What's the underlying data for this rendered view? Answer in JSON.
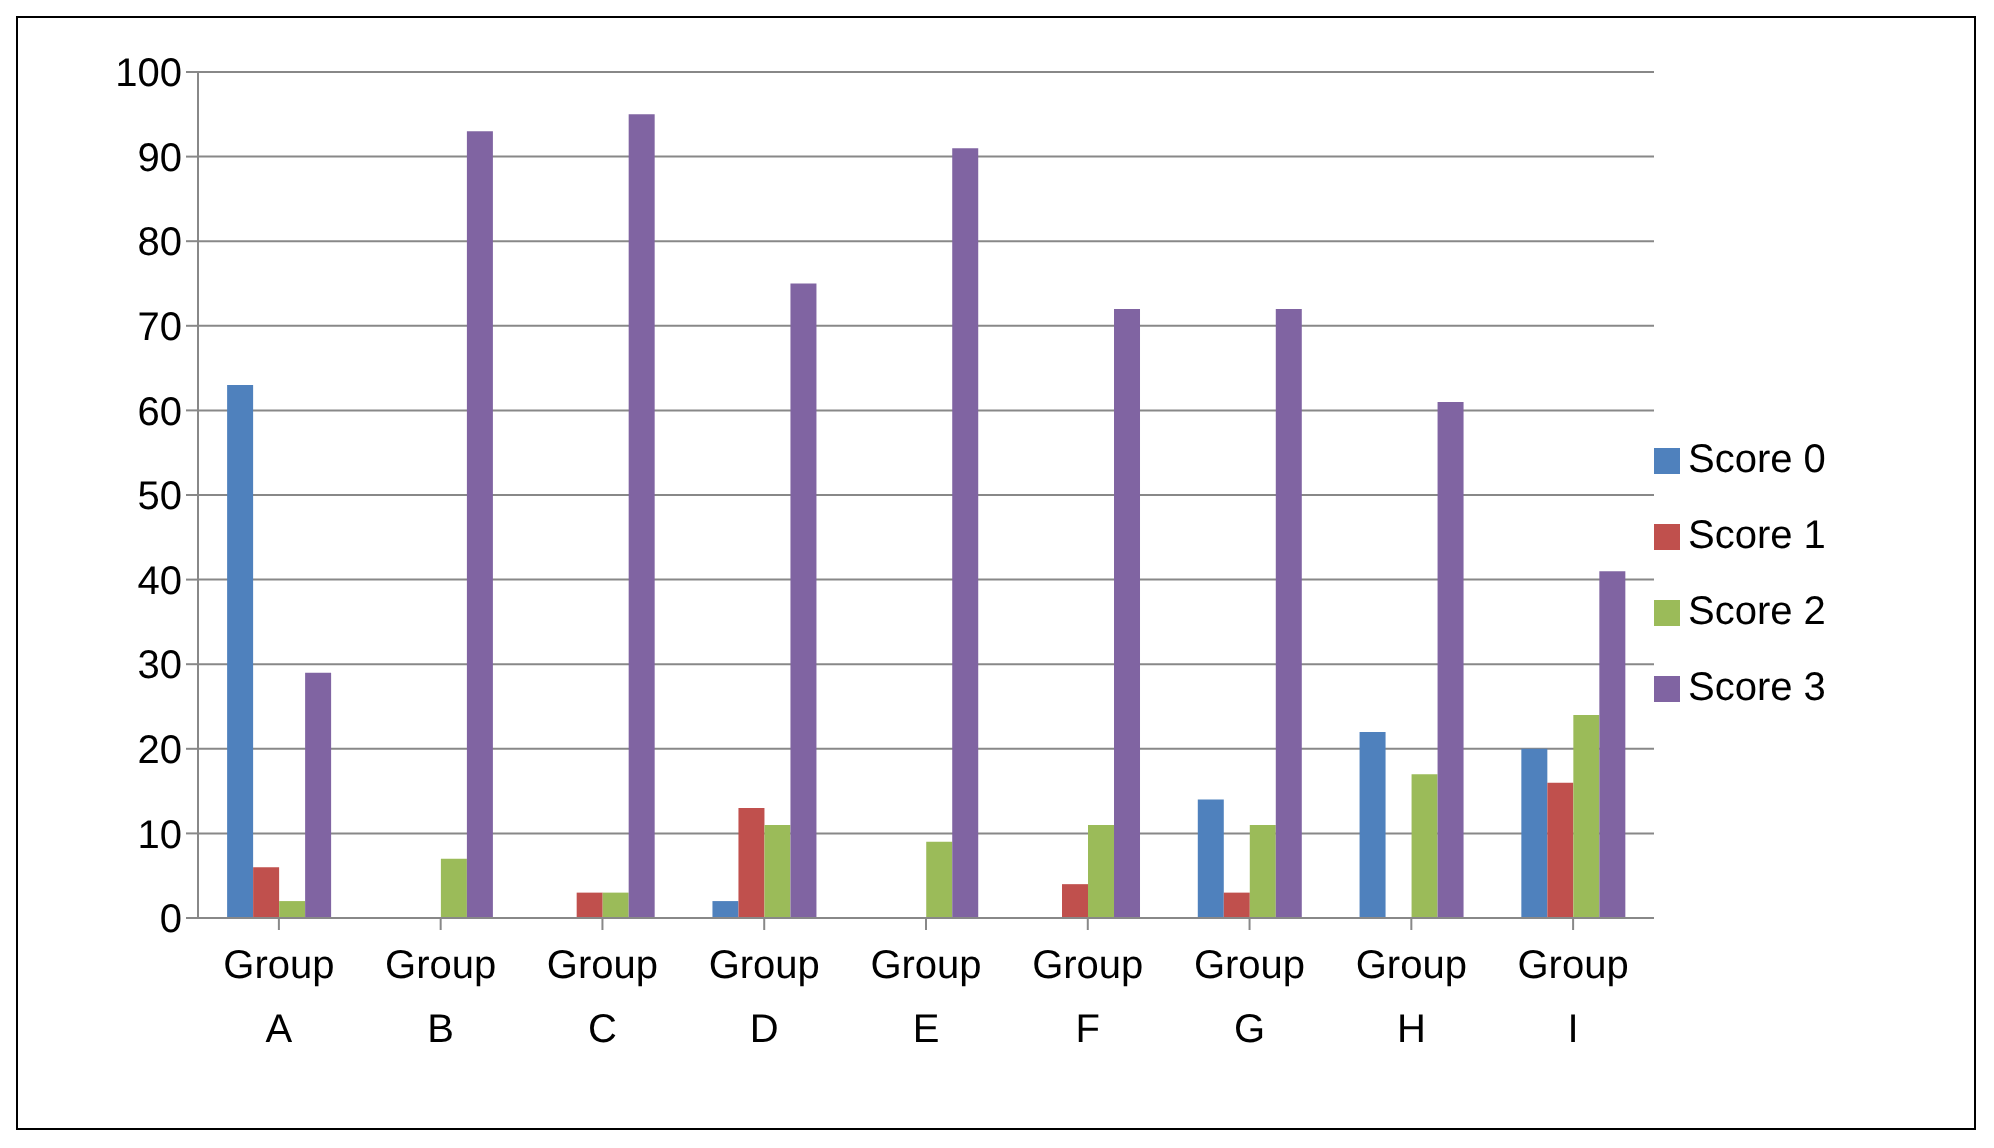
{
  "chart_data": {
    "type": "bar",
    "categories": [
      "Group A",
      "Group B",
      "Group C",
      "Group D",
      "Group E",
      "Group F",
      "Group G",
      "Group H",
      "Group I"
    ],
    "series": [
      {
        "name": "Score 0",
        "color": "#4f81bd",
        "values": [
          63,
          0,
          0,
          2,
          0,
          0,
          14,
          22,
          20
        ]
      },
      {
        "name": "Score 1",
        "color": "#c0504d",
        "values": [
          6,
          0,
          3,
          13,
          0,
          4,
          3,
          0,
          16
        ]
      },
      {
        "name": "Score 2",
        "color": "#9bbb59",
        "values": [
          2,
          7,
          3,
          11,
          9,
          11,
          11,
          17,
          24
        ]
      },
      {
        "name": "Score 3",
        "color": "#8064a2",
        "values": [
          29,
          93,
          95,
          75,
          91,
          72,
          72,
          61,
          41
        ]
      }
    ],
    "ylim": [
      0,
      100
    ],
    "yticks": [
      0,
      10,
      20,
      30,
      40,
      50,
      60,
      70,
      80,
      90,
      100
    ],
    "grid": "y",
    "legend": "right"
  }
}
